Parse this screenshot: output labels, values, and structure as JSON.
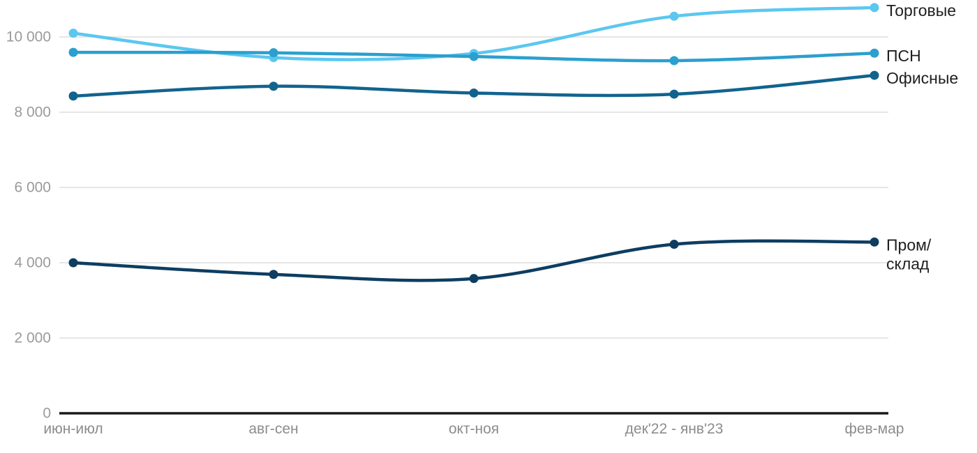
{
  "chart_data": {
    "type": "line",
    "title": "",
    "xlabel": "",
    "ylabel": "",
    "categories": [
      "июн-июл",
      "авг-сен",
      "окт-ноя",
      "дек'22 - янв'23",
      "фев-мар"
    ],
    "y_ticks": [
      {
        "value": 0,
        "label": "0"
      },
      {
        "value": 2000,
        "label": "2 000"
      },
      {
        "value": 4000,
        "label": "4 000"
      },
      {
        "value": 6000,
        "label": "6 000"
      },
      {
        "value": 8000,
        "label": "8 000"
      },
      {
        "value": 10000,
        "label": "10 000"
      }
    ],
    "ylim": [
      0,
      11000
    ],
    "grid": "horizontal-only",
    "legend_position": "inline-right-of-last-point",
    "series": [
      {
        "id": "retail",
        "name": "Торговые",
        "label_lines": [
          "Торговые"
        ],
        "color": "#5BC7F0",
        "values": [
          10100,
          9450,
          9560,
          10550,
          10780
        ]
      },
      {
        "id": "psn",
        "name": "ПСН",
        "label_lines": [
          "ПСН"
        ],
        "color": "#2B9FCE",
        "values": [
          9590,
          9580,
          9480,
          9370,
          9570
        ]
      },
      {
        "id": "office",
        "name": "Офисные",
        "label_lines": [
          "Офисные"
        ],
        "color": "#11638E",
        "values": [
          8430,
          8690,
          8510,
          8480,
          8980
        ]
      },
      {
        "id": "industrial",
        "name": "Пром/склад",
        "label_lines": [
          "Пром/",
          "склад"
        ],
        "color": "#0D3D61",
        "values": [
          4000,
          3690,
          3580,
          4490,
          4550
        ]
      }
    ],
    "colors": {
      "grid_line": "#E6E6E6",
      "axis_line": "#1A1A1A",
      "y_tick_text": "#9A9A9A",
      "x_tick_text": "#8C8C8C",
      "series_label_text": "#1F1F1F",
      "background": "#FFFFFF"
    }
  }
}
